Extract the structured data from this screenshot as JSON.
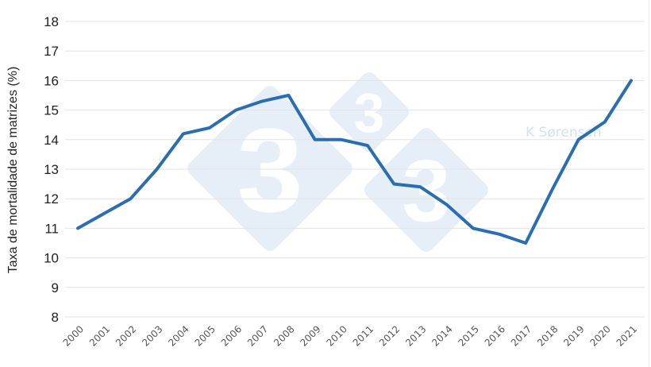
{
  "chart_data": {
    "type": "line",
    "title": "",
    "xlabel": "",
    "ylabel": "Taxa de mortalidade de matrizes (%)",
    "ylim": [
      8,
      18
    ],
    "yticks": [
      8,
      9,
      10,
      11,
      12,
      13,
      14,
      15,
      16,
      17,
      18
    ],
    "grid": true,
    "legend": null,
    "categories": [
      "2000",
      "2001",
      "2002",
      "2003",
      "2004",
      "2005",
      "2006",
      "2007",
      "2008",
      "2009",
      "2010",
      "2011",
      "2012",
      "2013",
      "2014",
      "2015",
      "2016",
      "2017",
      "2018",
      "2019",
      "2020",
      "2021"
    ],
    "series": [
      {
        "name": "Taxa de mortalidade de matrizes",
        "color": "#2a6eb0",
        "values": [
          11.0,
          11.5,
          12.0,
          13.0,
          14.2,
          14.4,
          15.0,
          15.3,
          15.5,
          14.0,
          14.0,
          13.8,
          12.5,
          12.4,
          11.8,
          11.0,
          10.8,
          10.5,
          12.3,
          14.0,
          14.6,
          16.0
        ]
      }
    ],
    "annotations": [
      "K Sørensen"
    ]
  },
  "watermark": {
    "glyph": "3",
    "color": "#e6eef7",
    "credit": "K Sørensen",
    "credit_color": "#d3e2f1"
  },
  "colors": {
    "grid": "#e3e3e3",
    "line": "#2a6eb0",
    "tick_text": "#222222",
    "xtick_text": "#555555"
  }
}
